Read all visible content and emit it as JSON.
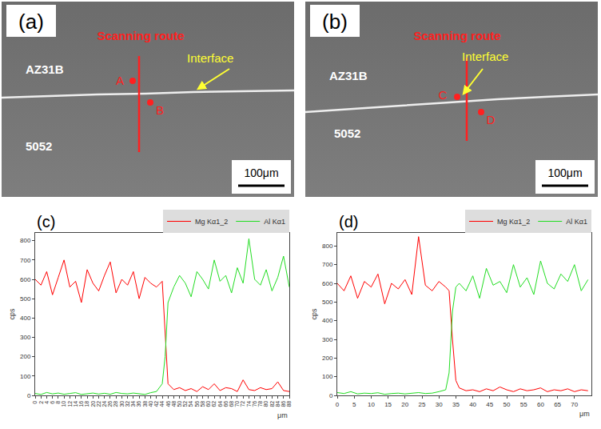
{
  "micrographs": [
    {
      "panel_label": "(a)",
      "upper": "AZ31B",
      "lower": "5052",
      "route": "Scanning route",
      "interface": "Interface",
      "points": [
        "A",
        "B"
      ],
      "scale_bar": "100μm"
    },
    {
      "panel_label": "(b)",
      "upper": "AZ31B",
      "lower": "5052",
      "route": "Scanning route",
      "interface": "Interface",
      "points": [
        "C",
        "D"
      ],
      "scale_bar": "100μm"
    }
  ],
  "chart_data": [
    {
      "type": "line",
      "panel_label": "(c)",
      "x_label": "μm",
      "y_label": "cps",
      "x": [
        0,
        2,
        4,
        6,
        8,
        10,
        12,
        14,
        16,
        18,
        20,
        22,
        24,
        26,
        28,
        30,
        32,
        34,
        36,
        38,
        40,
        42,
        44,
        45,
        46,
        48,
        50,
        52,
        54,
        56,
        58,
        60,
        62,
        64,
        66,
        68,
        70,
        72,
        74,
        76,
        78,
        80,
        82,
        84,
        86,
        88
      ],
      "series": [
        {
          "name": "Mg Kα1_2",
          "color": "#ff0000",
          "values": [
            600,
            570,
            640,
            520,
            610,
            700,
            560,
            590,
            480,
            650,
            580,
            540,
            620,
            690,
            530,
            600,
            570,
            640,
            500,
            610,
            580,
            560,
            590,
            300,
            60,
            30,
            40,
            25,
            35,
            20,
            45,
            30,
            60,
            25,
            40,
            35,
            20,
            80,
            30,
            25,
            40,
            30,
            35,
            70,
            25,
            20
          ]
        },
        {
          "name": "Al Kα1",
          "color": "#22dd22",
          "values": [
            10,
            5,
            15,
            8,
            12,
            6,
            10,
            14,
            5,
            9,
            12,
            7,
            11,
            6,
            15,
            10,
            8,
            12,
            9,
            5,
            14,
            20,
            60,
            200,
            480,
            560,
            620,
            580,
            510,
            640,
            600,
            550,
            700,
            590,
            620,
            530,
            660,
            580,
            810,
            600,
            570,
            650,
            540,
            610,
            720,
            560
          ]
        }
      ],
      "xlim": [
        0,
        88
      ],
      "xticks": [
        0,
        2,
        4,
        6,
        8,
        10,
        12,
        14,
        16,
        18,
        20,
        22,
        24,
        26,
        28,
        30,
        32,
        34,
        36,
        38,
        40,
        42,
        44,
        46,
        48,
        50,
        52,
        54,
        56,
        58,
        60,
        62,
        64,
        66,
        68,
        70,
        72,
        74,
        76,
        78,
        80,
        82,
        84,
        86,
        88
      ],
      "ylim": [
        0,
        840
      ],
      "yticks": [
        0,
        100,
        200,
        300,
        400,
        500,
        600,
        700,
        800
      ],
      "grid": false,
      "legend": "top right"
    },
    {
      "type": "line",
      "panel_label": "(d)",
      "x_label": "μm",
      "y_label": "cps",
      "x": [
        0,
        2,
        4,
        6,
        8,
        10,
        12,
        14,
        16,
        18,
        20,
        22,
        24,
        26,
        28,
        30,
        32,
        33,
        34,
        35,
        36,
        38,
        40,
        42,
        44,
        46,
        48,
        50,
        52,
        54,
        56,
        58,
        60,
        62,
        64,
        66,
        68,
        70,
        72,
        74
      ],
      "series": [
        {
          "name": "Mg Kα1_2",
          "color": "#ff0000",
          "values": [
            600,
            560,
            640,
            520,
            610,
            580,
            650,
            490,
            600,
            570,
            620,
            540,
            850,
            590,
            560,
            610,
            580,
            560,
            300,
            80,
            40,
            25,
            30,
            20,
            35,
            25,
            45,
            30,
            20,
            35,
            25,
            30,
            40,
            20,
            30,
            25,
            35,
            20,
            30,
            25
          ]
        },
        {
          "name": "Al Kα1",
          "color": "#22dd22",
          "values": [
            15,
            10,
            20,
            8,
            12,
            10,
            14,
            6,
            10,
            12,
            8,
            10,
            15,
            10,
            12,
            20,
            30,
            120,
            450,
            580,
            600,
            560,
            640,
            520,
            680,
            590,
            610,
            550,
            700,
            580,
            630,
            540,
            720,
            600,
            570,
            650,
            610,
            700,
            560,
            620
          ]
        }
      ],
      "xlim": [
        0,
        75
      ],
      "xticks": [
        0,
        5,
        10,
        15,
        20,
        25,
        30,
        35,
        40,
        45,
        50,
        55,
        60,
        65,
        70
      ],
      "ylim": [
        0,
        870
      ],
      "yticks": [
        0,
        100,
        200,
        300,
        400,
        500,
        600,
        700,
        800
      ],
      "grid": false,
      "legend": "top right"
    }
  ]
}
